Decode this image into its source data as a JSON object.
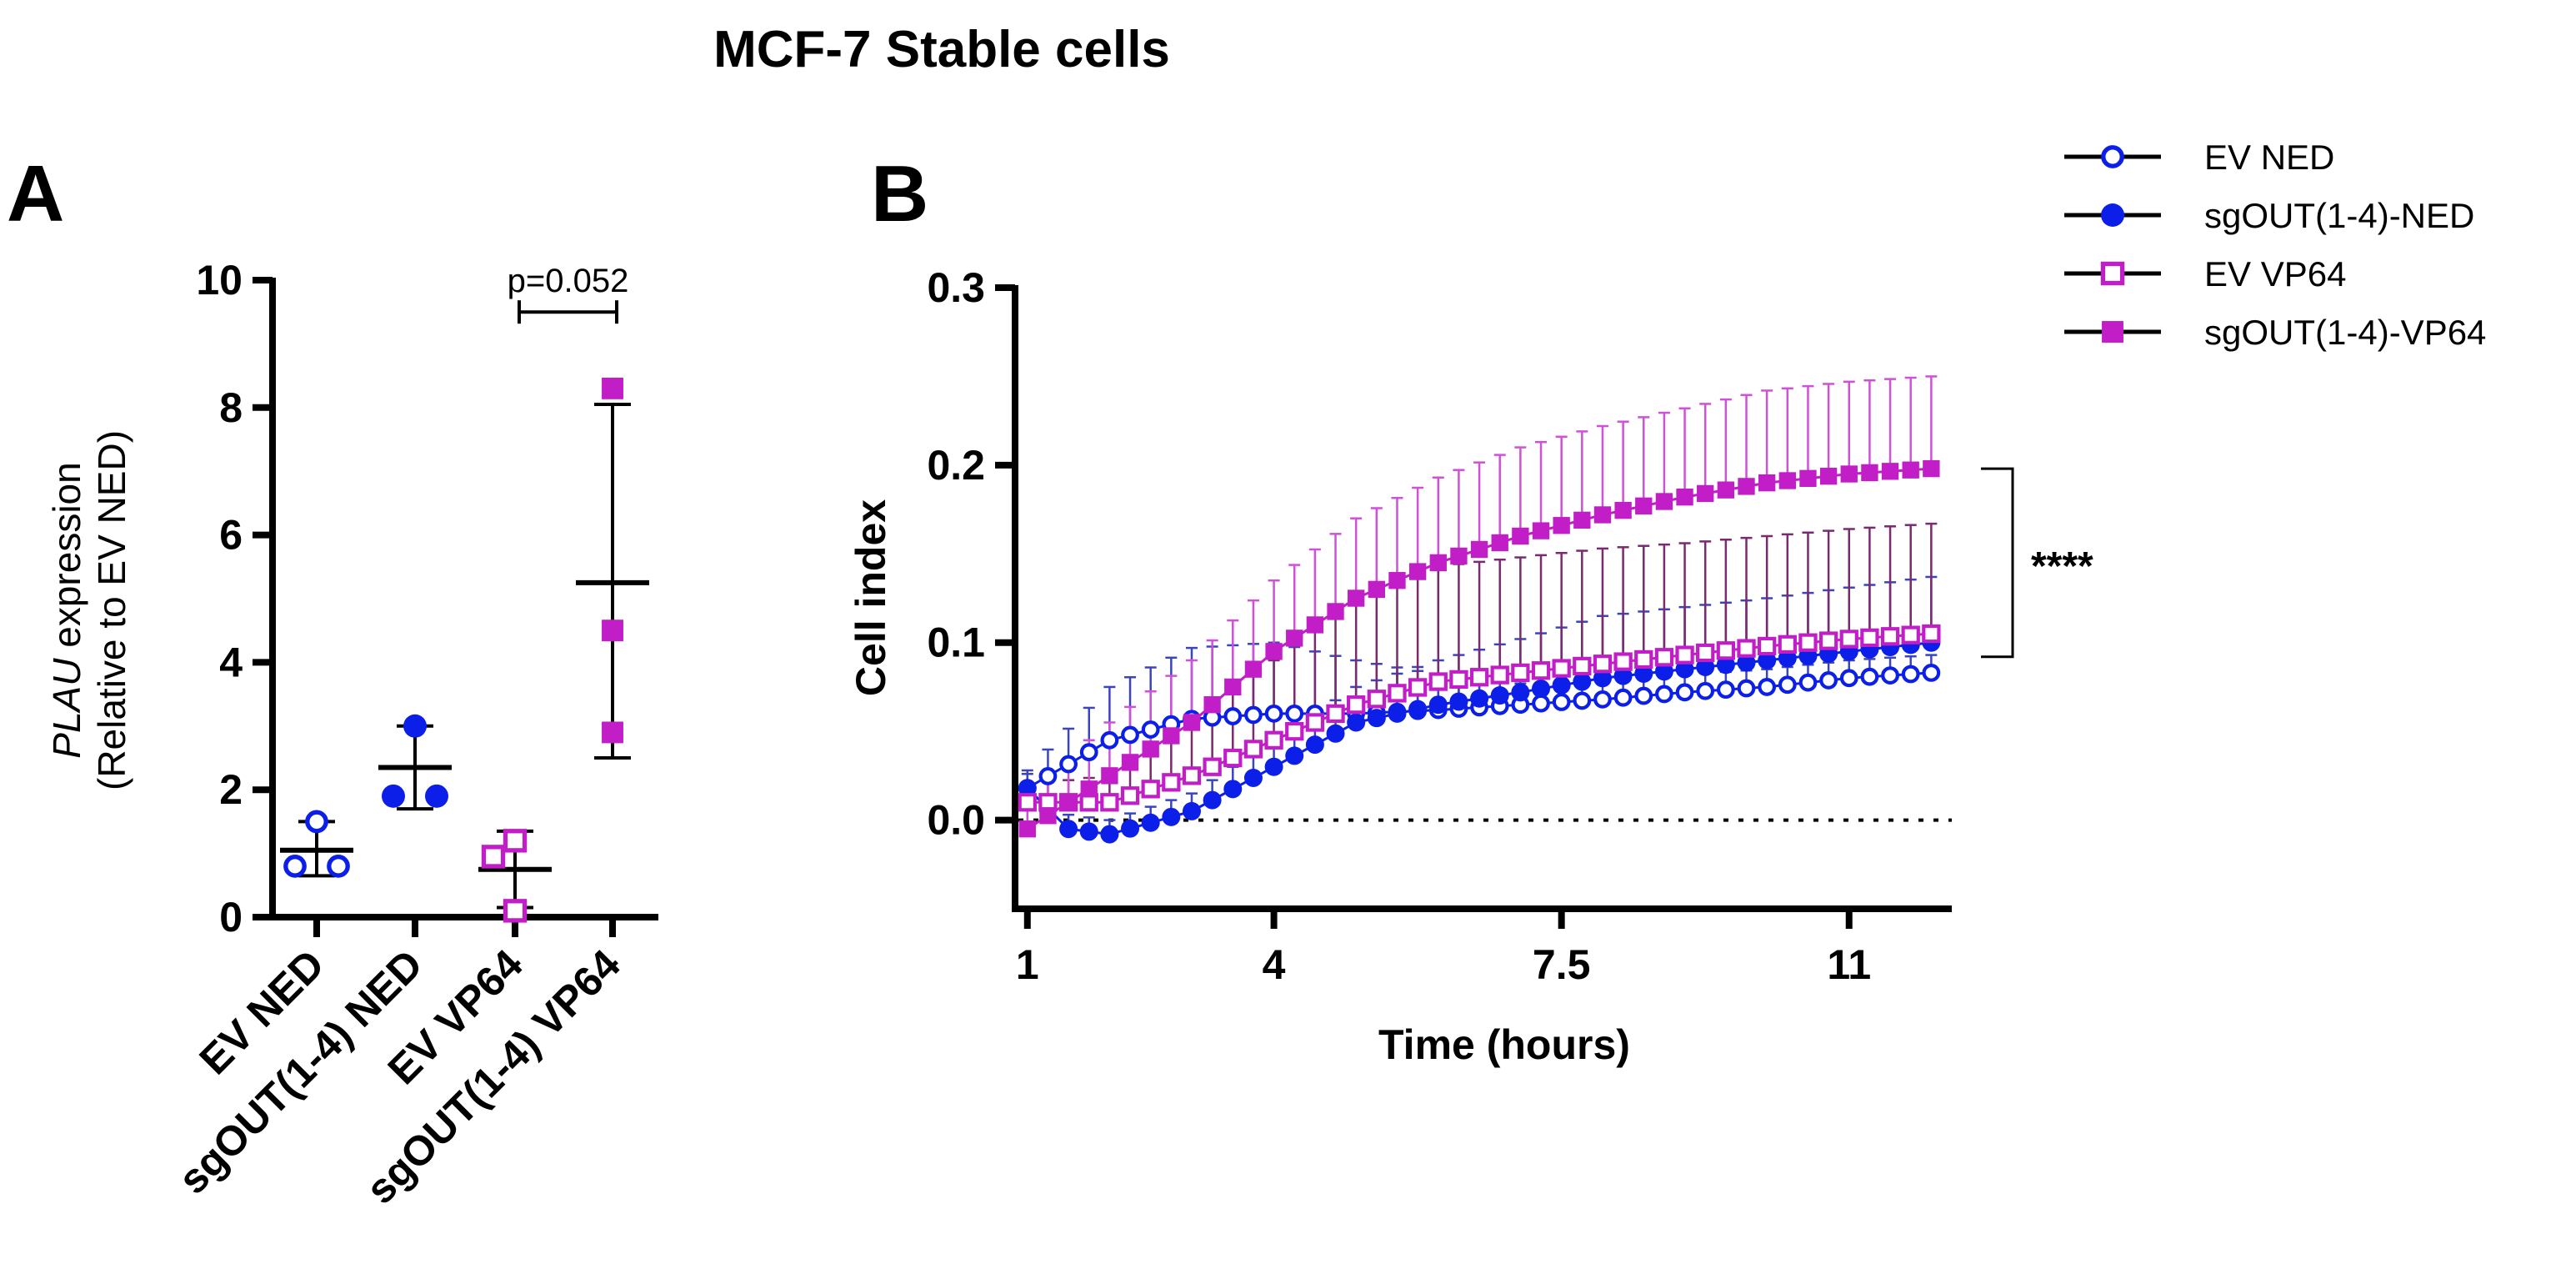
{
  "figure_title": "MCF-7 Stable cells",
  "colors": {
    "blue": "#0b1fe8",
    "magenta": "#c21ec8",
    "axis": "#000000",
    "ev_ned_error": "#3b44c0",
    "sg_ned_error": "#3b44c0",
    "ev_vp64_error": "#7a2a6e",
    "sg_vp64_error": "#d050d8"
  },
  "chart_data": [
    {
      "panel": "A",
      "type": "scatter",
      "ylabel_italic": "PLAU",
      "ylabel_rest": " expression",
      "ylabel_line2": "(Relative to EV NED)",
      "xlabel": "",
      "ylim": [
        0,
        10
      ],
      "yticks": [
        0,
        2,
        4,
        6,
        8,
        10
      ],
      "categories": [
        "EV NED",
        "sgOUT(1-4) NED",
        "EV VP64",
        "sgOUT(1-4) VP64"
      ],
      "groups": [
        {
          "name": "EV NED",
          "marker": "circle-open",
          "color": "blue",
          "points": [
            1.5,
            0.8,
            0.8
          ],
          "mean": 1.05,
          "sd_low": 0.65,
          "sd_high": 1.5
        },
        {
          "name": "sgOUT(1-4) NED",
          "marker": "circle-filled",
          "color": "blue",
          "points": [
            3.0,
            1.9,
            1.9
          ],
          "mean": 2.35,
          "sd_low": 1.7,
          "sd_high": 3.0
        },
        {
          "name": "EV VP64",
          "marker": "square-open",
          "color": "magenta",
          "points": [
            1.2,
            0.95,
            0.1
          ],
          "mean": 0.75,
          "sd_low": 0.15,
          "sd_high": 1.35
        },
        {
          "name": "sgOUT(1-4) VP64",
          "marker": "square-filled",
          "color": "magenta",
          "points": [
            8.3,
            4.5,
            2.9
          ],
          "mean": 5.25,
          "sd_low": 2.5,
          "sd_high": 8.05
        }
      ],
      "annotation": {
        "text": "p=0.052",
        "from": 2,
        "to": 3,
        "y": 9.5
      }
    },
    {
      "panel": "B",
      "type": "line",
      "ylabel": "Cell index",
      "xlabel": "Time (hours)",
      "xlim": [
        0.85,
        12.25
      ],
      "ylim": [
        -0.05,
        0.3
      ],
      "xticks": [
        1,
        4,
        7.5,
        11
      ],
      "xtick_labels": [
        "1",
        "4",
        "7.5",
        "11"
      ],
      "yticks": [
        0.0,
        0.1,
        0.2,
        0.3
      ],
      "ytick_labels": [
        "0.0",
        "0.1",
        "0.2",
        "0.3"
      ],
      "reference_line_y": 0,
      "significance": {
        "text": "****",
        "y_low": 0.092,
        "y_high": 0.198
      },
      "legend_position": "top-right",
      "series": [
        {
          "name": "EV NED",
          "marker": "circle-open",
          "color": "blue",
          "error_color": "ev_ned_error",
          "anchors": [
            [
              1,
              0.018
            ],
            [
              2,
              0.045
            ],
            [
              3,
              0.057
            ],
            [
              4,
              0.06
            ],
            [
              5,
              0.06
            ],
            [
              6,
              0.062
            ],
            [
              7,
              0.065
            ],
            [
              8,
              0.068
            ],
            [
              9,
              0.072
            ],
            [
              10,
              0.075
            ],
            [
              11,
              0.08
            ],
            [
              12,
              0.083
            ]
          ],
          "sd_anchors": [
            [
              1,
              0.01
            ],
            [
              2,
              0.03
            ],
            [
              3,
              0.04
            ],
            [
              4,
              0.04
            ],
            [
              5,
              0.03
            ],
            [
              6,
              0.02
            ],
            [
              7,
              0.012
            ],
            [
              8,
              0.01
            ],
            [
              9,
              0.01
            ],
            [
              10,
              0.01
            ],
            [
              11,
              0.01
            ],
            [
              12,
              0.01
            ]
          ]
        },
        {
          "name": "sgOUT(1-4)-NED",
          "marker": "circle-filled",
          "color": "blue",
          "error_color": "sg_ned_error",
          "anchors": [
            [
              1,
              0.018
            ],
            [
              1.5,
              -0.005
            ],
            [
              2,
              -0.008
            ],
            [
              3,
              0.005
            ],
            [
              4,
              0.03
            ],
            [
              5,
              0.055
            ],
            [
              6,
              0.065
            ],
            [
              7,
              0.072
            ],
            [
              8,
              0.08
            ],
            [
              9,
              0.085
            ],
            [
              10,
              0.09
            ],
            [
              11,
              0.095
            ],
            [
              12,
              0.1
            ]
          ],
          "sd_anchors": [
            [
              1,
              0.008
            ],
            [
              2,
              0.008
            ],
            [
              3,
              0.01
            ],
            [
              4,
              0.015
            ],
            [
              5,
              0.02
            ],
            [
              6,
              0.025
            ],
            [
              7,
              0.03
            ],
            [
              8,
              0.035
            ],
            [
              9,
              0.035
            ],
            [
              10,
              0.035
            ],
            [
              11,
              0.036
            ],
            [
              12,
              0.037
            ]
          ]
        },
        {
          "name": "EV VP64",
          "marker": "square-open",
          "color": "magenta",
          "error_color": "ev_vp64_error",
          "anchors": [
            [
              1,
              0.01
            ],
            [
              2,
              0.01
            ],
            [
              3,
              0.025
            ],
            [
              4,
              0.045
            ],
            [
              5,
              0.065
            ],
            [
              6,
              0.078
            ],
            [
              7,
              0.083
            ],
            [
              8,
              0.088
            ],
            [
              9,
              0.093
            ],
            [
              10,
              0.098
            ],
            [
              11,
              0.102
            ],
            [
              12,
              0.105
            ]
          ],
          "sd_anchors": [
            [
              1,
              0.01
            ],
            [
              2,
              0.015
            ],
            [
              3,
              0.03
            ],
            [
              4,
              0.045
            ],
            [
              5,
              0.06
            ],
            [
              6,
              0.065
            ],
            [
              7,
              0.065
            ],
            [
              8,
              0.065
            ],
            [
              9,
              0.063
            ],
            [
              10,
              0.062
            ],
            [
              11,
              0.062
            ],
            [
              12,
              0.062
            ]
          ]
        },
        {
          "name": "sgOUT(1-4)-VP64",
          "marker": "square-filled",
          "color": "magenta",
          "error_color": "sg_vp64_error",
          "anchors": [
            [
              1,
              -0.005
            ],
            [
              2,
              0.025
            ],
            [
              3,
              0.055
            ],
            [
              4,
              0.095
            ],
            [
              5,
              0.125
            ],
            [
              6,
              0.145
            ],
            [
              7,
              0.16
            ],
            [
              8,
              0.172
            ],
            [
              9,
              0.182
            ],
            [
              10,
              0.19
            ],
            [
              11,
              0.195
            ],
            [
              12,
              0.198
            ]
          ],
          "sd_anchors": [
            [
              1,
              0.02
            ],
            [
              2,
              0.03
            ],
            [
              3,
              0.035
            ],
            [
              4,
              0.04
            ],
            [
              5,
              0.045
            ],
            [
              6,
              0.048
            ],
            [
              7,
              0.05
            ],
            [
              8,
              0.05
            ],
            [
              9,
              0.05
            ],
            [
              10,
              0.052
            ],
            [
              11,
              0.052
            ],
            [
              12,
              0.052
            ]
          ]
        }
      ]
    }
  ]
}
